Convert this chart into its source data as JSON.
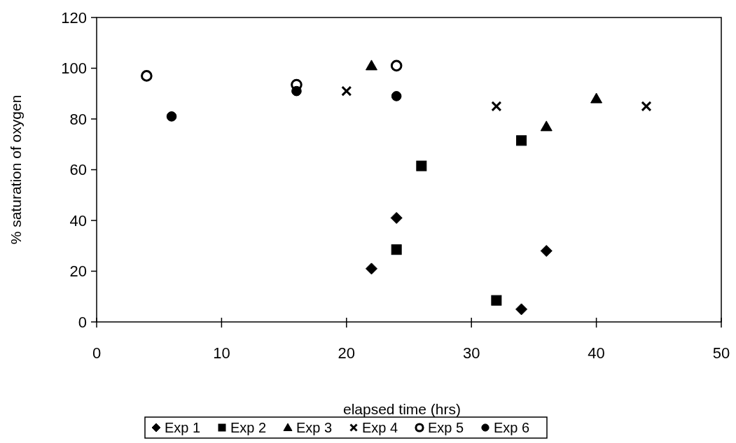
{
  "chart_data": {
    "type": "scatter",
    "xlabel": "elapsed time (hrs)",
    "ylabel": "% saturation of oxygen",
    "xlim": [
      0,
      50
    ],
    "xticks": [
      0,
      10,
      20,
      30,
      40,
      50
    ],
    "ylim": [
      0,
      120
    ],
    "yticks": [
      0,
      20,
      40,
      60,
      80,
      100,
      120
    ],
    "grid": false,
    "legend": "bottom",
    "series": [
      {
        "name": "Exp 1",
        "color": "#000000",
        "marker": "diamond",
        "x": [
          22,
          24,
          34,
          36
        ],
        "values": [
          21,
          41,
          5,
          28
        ]
      },
      {
        "name": "Exp 2",
        "color": "#000000",
        "marker": "square",
        "x": [
          24,
          26,
          32,
          34
        ],
        "values": [
          28.5,
          61.5,
          8.5,
          71.5
        ]
      },
      {
        "name": "Exp 3",
        "color": "#000000",
        "marker": "triangle",
        "x": [
          22,
          36,
          40
        ],
        "values": [
          101,
          77,
          88
        ]
      },
      {
        "name": "Exp 4",
        "color": "#000000",
        "marker": "cross",
        "x": [
          20,
          32,
          44
        ],
        "values": [
          91,
          85,
          85
        ]
      },
      {
        "name": "Exp 5",
        "color": "#ffffff",
        "marker": "circle",
        "x": [
          4,
          16,
          24
        ],
        "values": [
          97,
          93.5,
          101
        ]
      },
      {
        "name": "Exp 6",
        "color": "#000000",
        "marker": "circle",
        "x": [
          6,
          16,
          24
        ],
        "values": [
          81,
          91,
          89
        ]
      }
    ]
  }
}
